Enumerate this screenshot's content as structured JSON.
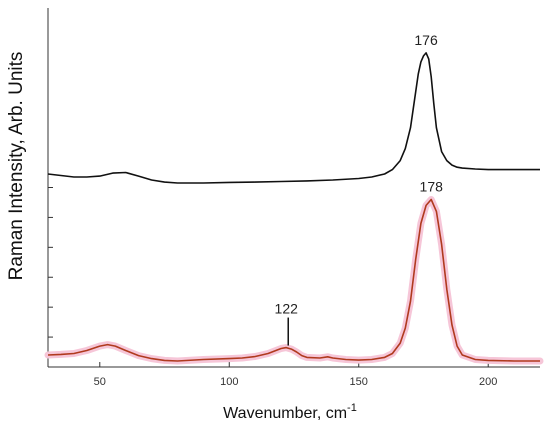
{
  "chart_data": {
    "type": "line",
    "title": "",
    "xlabel": "Wavenumber, cm",
    "xlabel_superscript": "-1",
    "ylabel": "Raman Intensity, Arb. Units",
    "xlim": [
      30,
      220
    ],
    "ylim": [
      0,
      12
    ],
    "x_ticks": [
      50,
      100,
      150,
      200
    ],
    "y_ticks": [
      0,
      1,
      2,
      3,
      4,
      5,
      6
    ],
    "y_tick_labels_shown": false,
    "grid": false,
    "legend": "none",
    "series": [
      {
        "color": "#111111",
        "x": [
          30,
          35,
          40,
          45,
          50,
          55,
          60,
          65,
          70,
          75,
          80,
          90,
          100,
          110,
          120,
          130,
          140,
          150,
          155,
          160,
          163,
          166,
          168,
          170,
          172,
          173,
          174,
          175,
          176,
          177,
          178,
          179,
          180,
          182,
          184,
          186,
          188,
          190,
          195,
          200,
          210,
          220
        ],
        "y": [
          6.45,
          6.4,
          6.35,
          6.35,
          6.38,
          6.48,
          6.5,
          6.38,
          6.25,
          6.18,
          6.15,
          6.15,
          6.17,
          6.18,
          6.2,
          6.22,
          6.25,
          6.3,
          6.35,
          6.45,
          6.6,
          6.9,
          7.3,
          8.0,
          9.2,
          9.8,
          10.2,
          10.4,
          10.5,
          10.3,
          9.7,
          8.8,
          8.0,
          7.2,
          6.9,
          6.75,
          6.68,
          6.65,
          6.62,
          6.6,
          6.6,
          6.6
        ]
      },
      {
        "color": "#b03a1e",
        "band_color": "#f6c6d8",
        "x": [
          30,
          35,
          40,
          45,
          50,
          53,
          56,
          60,
          65,
          70,
          75,
          80,
          90,
          100,
          105,
          110,
          115,
          118,
          120,
          122,
          124,
          126,
          128,
          130,
          135,
          138,
          140,
          145,
          150,
          155,
          160,
          163,
          166,
          168,
          170,
          172,
          174,
          176,
          178,
          180,
          182,
          184,
          186,
          188,
          190,
          195,
          200,
          210,
          220
        ],
        "y": [
          0.4,
          0.42,
          0.45,
          0.55,
          0.7,
          0.75,
          0.7,
          0.55,
          0.38,
          0.28,
          0.22,
          0.2,
          0.25,
          0.28,
          0.3,
          0.35,
          0.45,
          0.55,
          0.62,
          0.65,
          0.6,
          0.5,
          0.38,
          0.32,
          0.3,
          0.34,
          0.3,
          0.25,
          0.23,
          0.25,
          0.32,
          0.45,
          0.8,
          1.3,
          2.2,
          3.6,
          4.8,
          5.4,
          5.6,
          5.2,
          4.1,
          2.6,
          1.4,
          0.7,
          0.4,
          0.25,
          0.22,
          0.2,
          0.2
        ]
      }
    ],
    "annotations": [
      {
        "text": "176",
        "x": 176,
        "y": 10.5,
        "series": 0
      },
      {
        "text": "178",
        "x": 178,
        "y": 5.6,
        "series": 1
      },
      {
        "text": "122",
        "x": 122,
        "y": 0.65,
        "series": 1,
        "marker_line": true
      }
    ]
  }
}
